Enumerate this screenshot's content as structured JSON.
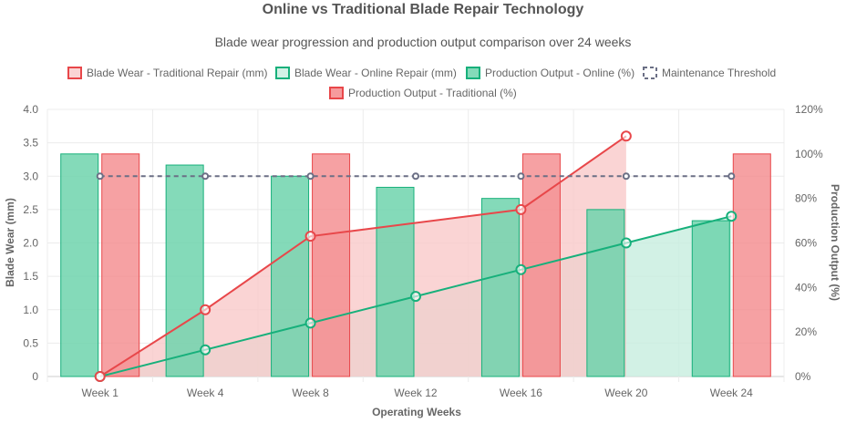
{
  "chart_data": {
    "type": "bar",
    "title": "Online vs Traditional Blade Repair Technology",
    "subtitle": "Blade wear progression and production output comparison over 24 weeks",
    "categories": [
      "Week 1",
      "Week 4",
      "Week 8",
      "Week 12",
      "Week 16",
      "Week 20",
      "Week 24"
    ],
    "xlabel": "Operating Weeks",
    "ylabel": "Blade Wear (mm)",
    "y2label": "Production Output (%)",
    "ylim": [
      0,
      4
    ],
    "y2lim": [
      0,
      120
    ],
    "y_ticks": [
      "0",
      "0.5",
      "1.0",
      "1.5",
      "2.0",
      "2.5",
      "3.0",
      "3.5",
      "4.0"
    ],
    "y2_ticks": [
      "0%",
      "20%",
      "40%",
      "60%",
      "80%",
      "100%",
      "120%"
    ],
    "grid": true,
    "legend_position": "top",
    "series": [
      {
        "name": "Blade Wear - Traditional Repair (mm)",
        "type": "line",
        "axis": "left",
        "values": [
          0,
          1.0,
          2.1,
          null,
          2.5,
          3.6,
          null
        ],
        "color": "#e8474a",
        "fill": "#f9c9c9"
      },
      {
        "name": "Blade Wear - Online Repair (mm)",
        "type": "line",
        "axis": "left",
        "values": [
          0,
          0.4,
          0.8,
          1.2,
          1.6,
          2.0,
          2.4
        ],
        "color": "#17b07b",
        "fill": "#c7eedf"
      },
      {
        "name": "Production Output - Online (%)",
        "type": "bar",
        "axis": "right",
        "values": [
          100,
          95,
          90,
          85,
          80,
          75,
          70
        ],
        "color": "#17b07b",
        "fill": "#6fd3ad"
      },
      {
        "name": "Maintenance Threshold",
        "type": "line",
        "axis": "left",
        "dashed": true,
        "values": [
          3.0,
          3.0,
          3.0,
          3.0,
          3.0,
          3.0,
          3.0
        ],
        "color": "#6b6f85"
      },
      {
        "name": "Production Output - Traditional (%)",
        "type": "bar",
        "axis": "right",
        "values": [
          100,
          null,
          100,
          null,
          100,
          null,
          100
        ],
        "color": "#e8474a",
        "fill": "#f48a8c"
      }
    ]
  }
}
